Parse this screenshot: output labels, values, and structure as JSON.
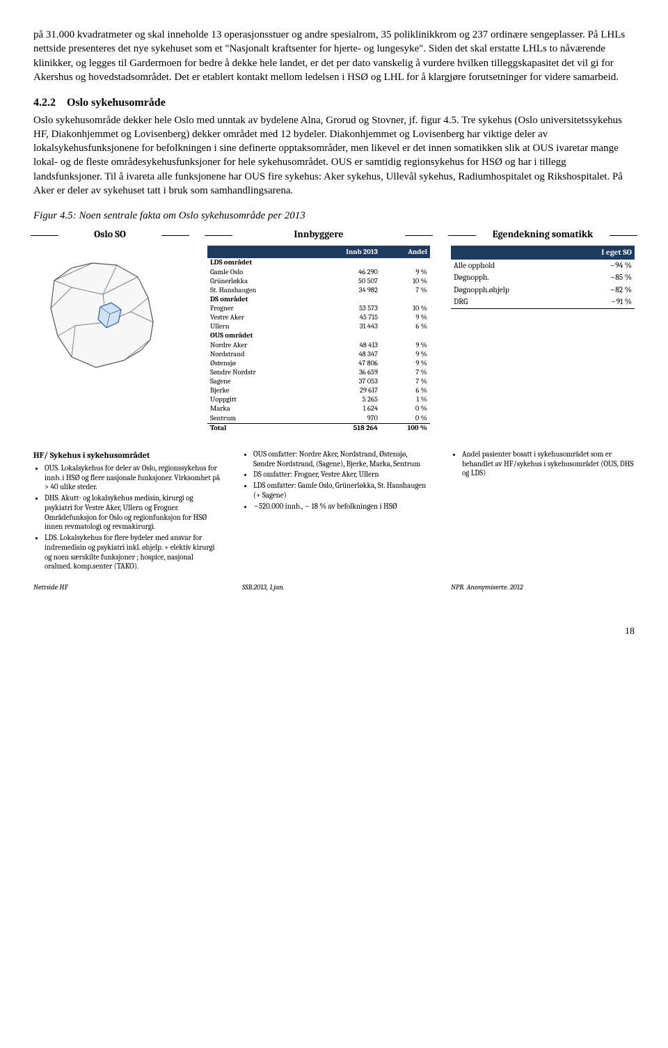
{
  "paragraphs": {
    "p1": "på 31.000 kvadratmeter og skal inneholde 13 operasjonsstuer og andre spesialrom, 35 poliklinikkrom og 237 ordinære sengeplasser. På LHLs nettside presenteres det nye sykehuset som et \"Nasjonalt kraftsenter for hjerte- og lungesyke\". Siden det skal erstatte LHLs to nåværende klinikker, og legges til Gardermoen for bedre å dekke hele landet, er det per dato vanskelig å vurdere hvilken tilleggskapasitet det vil gi for Akershus og hovedstadsområdet. Det er etablert kontakt mellom ledelsen i HSØ og LHL for å klargjøre forutsetninger for videre samarbeid.",
    "p2": "Oslo sykehusområde dekker hele Oslo med unntak av bydelene Alna, Grorud og Stovner, jf. figur 4.5. Tre sykehus (Oslo universitetssykehus HF, Diakonhjemmet og Lovisenberg) dekker området med 12 bydeler. Diakonhjemmet og Lovisenberg har viktige deler av lokalsykehusfunksjonene for befolkningen i sine definerte opptaksområder, men likevel er det innen somatikken slik at OUS ivaretar mange lokal- og de fleste områdesykehusfunksjoner for hele sykehusområdet. OUS er samtidig regionsykehus for HSØ og har i tillegg landsfunksjoner. Til å ivareta alle funksjonene har OUS fire sykehus: Aker sykehus, Ullevål sykehus, Radiumhospitalet og Rikshospitalet. På Aker er deler av sykehuset tatt i bruk som samhandlingsarena."
  },
  "section": {
    "num": "4.2.2",
    "title": "Oslo sykehusområde"
  },
  "figure_caption": "Figur 4.5: Noen sentrale fakta om Oslo sykehusområde per 2013",
  "col_titles": {
    "left": "Oslo SO",
    "mid": "Innbyggere",
    "right": "Egendekning somatikk"
  },
  "innb": {
    "head_col2": "Innb 2013",
    "head_col3": "Andel",
    "groups": [
      {
        "label": "LDS området",
        "rows": [
          {
            "name": "Gamle Oslo",
            "v": "46 290",
            "p": "9 %"
          },
          {
            "name": "Grünerløkka",
            "v": "50 507",
            "p": "10 %"
          },
          {
            "name": "St. Hanshaugen",
            "v": "34 982",
            "p": "7 %"
          }
        ]
      },
      {
        "label": "DS området",
        "rows": [
          {
            "name": "Frogner",
            "v": "53 573",
            "p": "10 %"
          },
          {
            "name": "Vestre Aker",
            "v": "45 715",
            "p": "9 %"
          },
          {
            "name": "Ullern",
            "v": "31 443",
            "p": "6 %"
          }
        ]
      },
      {
        "label": "OUS området",
        "rows": [
          {
            "name": "Nordre Aker",
            "v": "48 413",
            "p": "9 %"
          },
          {
            "name": "Nordstrand",
            "v": "48 347",
            "p": "9 %"
          },
          {
            "name": "Østensjø",
            "v": "47 806",
            "p": "9 %"
          },
          {
            "name": "Søndre Nordstr",
            "v": "36 659",
            "p": "7 %"
          },
          {
            "name": "Sagene",
            "v": "37 053",
            "p": "7 %"
          },
          {
            "name": "Bjerke",
            "v": "29 617",
            "p": "6 %"
          },
          {
            "name": "Uoppgitt",
            "v": "5 265",
            "p": "1 %"
          },
          {
            "name": "Marka",
            "v": "1 624",
            "p": "0 %"
          },
          {
            "name": "Sentrum",
            "v": "970",
            "p": "0 %"
          }
        ]
      }
    ],
    "total": {
      "label": "Total",
      "v": "518 264",
      "p": "100 %"
    }
  },
  "egen": {
    "head_right": "I eget SO",
    "rows": [
      {
        "label": "Alle opphold",
        "v": "~94 %"
      },
      {
        "label": "Døgnopph.",
        "v": "~85 %"
      },
      {
        "label": "Døgnopph.øhjelp",
        "v": "~82 %"
      },
      {
        "label": "DRG",
        "v": "~91 %",
        "underline": true
      }
    ]
  },
  "hf": {
    "title": "HF/ Sykehus i sykehusområdet",
    "items": [
      "OUS. Lokalsykehus for deler av Oslo, regionssykehus for innb. i HSØ og flere nasjonale funksjoner. Virksomhet på > 40 ulike steder.",
      "DHS. Akutt- og lokalsykehus medisin, kirurgi og psykiatri for Vestre Aker, Ullern og Frogner. Områdefunksjon for Oslo og regionfunksjon for HSØ innen revmatologi og revmakirurgi.",
      "LDS. Lokalsykehus for flere bydeler med ansvar for indremedisin og psykiatri inkl. øhjelp. + elektiv kirurgi og noen særskilte funksjoner ; hospice, nasjonal oralmed. komp.senter (TAKO)."
    ]
  },
  "mid_bullets": [
    "OUS omfatter: Nordre Aker, Nordstrand, Østensjø, Søndre Nordstrand, (Sagene), Bjerke, Marka, Sentrum",
    "DS omfatter: Frogner, Vestre Aker, Ullern",
    "LDS omfatter: Gamle Oslo, Grünerløkka, St. Hanshaugen (+ Sagene)",
    "~520.000 innb., ~ 18 % av befolkningen i HSØ"
  ],
  "right_bullets": [
    "Andel pasienter bosatt i sykehusområdet som er behandlet av HF/sykehus i sykehusområdet (OUS, DHS og LDS)"
  ],
  "sources": {
    "left": "Nettside HF",
    "mid": "SSB.2013, 1.jan.",
    "right": "NPR. Anonymiserte. 2012"
  },
  "page_number": "18",
  "colors": {
    "header_bg": "#1f3a5f",
    "map_stroke": "#555555",
    "map_fill": "#f7f7f7",
    "map_highlight_stroke": "#2a5a9a",
    "map_highlight_fill": "#cfe2f3"
  }
}
